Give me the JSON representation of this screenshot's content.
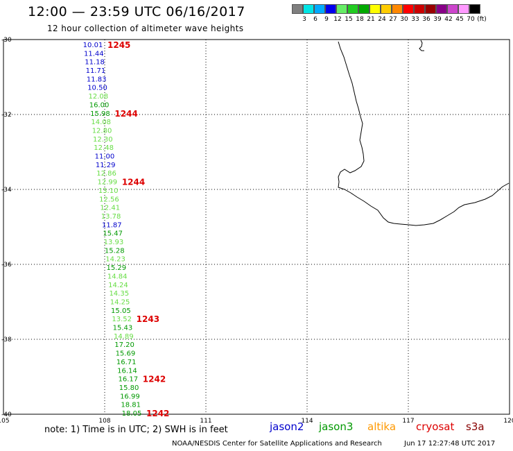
{
  "header": {
    "title": "12:00 — 23:59 UTC 06/16/2017",
    "subtitle": "12 hour collection of altimeter wave heights"
  },
  "colorbar": {
    "colors": [
      "#7f7f7f",
      "#00e5e5",
      "#00aaff",
      "#0000ee",
      "#66ee66",
      "#22cc22",
      "#00aa00",
      "#ffff00",
      "#ffcc00",
      "#ff8800",
      "#ff0000",
      "#cc0000",
      "#990000",
      "#880088",
      "#cc44cc",
      "#ff99ff",
      "#000000"
    ],
    "labels": [
      "3",
      "6",
      "9",
      "12",
      "15",
      "18",
      "21",
      "24",
      "27",
      "30",
      "33",
      "36",
      "39",
      "42",
      "45",
      "70",
      "(ft)"
    ]
  },
  "axes": {
    "lat_ticks": [
      "-30",
      "-32",
      "-34",
      "-36",
      "-38",
      "-40"
    ],
    "lon_ticks": [
      "105",
      "108",
      "111",
      "114",
      "117",
      "120"
    ],
    "lon_range": [
      105,
      120
    ],
    "lat_range": [
      -30,
      -40
    ]
  },
  "observations": [
    {
      "value": "10.01",
      "color": "#0000cc"
    },
    {
      "value": "11.44",
      "color": "#0000cc"
    },
    {
      "value": "11.18",
      "color": "#0000cc"
    },
    {
      "value": "11.71",
      "color": "#0000cc"
    },
    {
      "value": "11.83",
      "color": "#0000cc"
    },
    {
      "value": "10.50",
      "color": "#0000cc"
    },
    {
      "value": "12.08",
      "color": "#66dd44"
    },
    {
      "value": "16.00",
      "color": "#009900"
    },
    {
      "value": "15.98",
      "color": "#009900"
    },
    {
      "value": "14.08",
      "color": "#66dd44"
    },
    {
      "value": "12.80",
      "color": "#66dd44"
    },
    {
      "value": "12.30",
      "color": "#66dd44"
    },
    {
      "value": "12.48",
      "color": "#66dd44"
    },
    {
      "value": "11.00",
      "color": "#0000cc"
    },
    {
      "value": "11.29",
      "color": "#0000cc"
    },
    {
      "value": "12.86",
      "color": "#66dd44"
    },
    {
      "value": "12.99",
      "color": "#66dd44"
    },
    {
      "value": "13.10",
      "color": "#66dd44"
    },
    {
      "value": "12.56",
      "color": "#66dd44"
    },
    {
      "value": "12.41",
      "color": "#66dd44"
    },
    {
      "value": "13.78",
      "color": "#66dd44"
    },
    {
      "value": "11.87",
      "color": "#0000cc"
    },
    {
      "value": "15.47",
      "color": "#009900"
    },
    {
      "value": "13.93",
      "color": "#66dd44"
    },
    {
      "value": "15.28",
      "color": "#009900"
    },
    {
      "value": "14.23",
      "color": "#66dd44"
    },
    {
      "value": "15.29",
      "color": "#009900"
    },
    {
      "value": "14.84",
      "color": "#66dd44"
    },
    {
      "value": "14.24",
      "color": "#66dd44"
    },
    {
      "value": "14.35",
      "color": "#66dd44"
    },
    {
      "value": "14.25",
      "color": "#66dd44"
    },
    {
      "value": "15.05",
      "color": "#009900"
    },
    {
      "value": "13.52",
      "color": "#66dd44"
    },
    {
      "value": "15.43",
      "color": "#009900"
    },
    {
      "value": "14.89",
      "color": "#66dd44"
    },
    {
      "value": "17.20",
      "color": "#009900"
    },
    {
      "value": "15.69",
      "color": "#009900"
    },
    {
      "value": "16.71",
      "color": "#009900"
    },
    {
      "value": "16.14",
      "color": "#009900"
    },
    {
      "value": "16.17",
      "color": "#009900"
    },
    {
      "value": "15.80",
      "color": "#009900"
    },
    {
      "value": "16.99",
      "color": "#009900"
    },
    {
      "value": "18.81",
      "color": "#009900"
    },
    {
      "value": "18.05",
      "color": "#009900"
    }
  ],
  "time_labels": [
    {
      "text": "1245",
      "obs_index": 0
    },
    {
      "text": "1244",
      "obs_index": 8
    },
    {
      "text": "1244",
      "obs_index": 16
    },
    {
      "text": "1243",
      "obs_index": 32
    },
    {
      "text": "1242",
      "obs_index": 39
    },
    {
      "text": "1242",
      "obs_index": 43
    }
  ],
  "time_label_color": "#dd0000",
  "note": "note: 1) Time is in UTC; 2) SWH is in feet",
  "legend": [
    {
      "name": "jason2",
      "color": "#0000cc"
    },
    {
      "name": "jason3",
      "color": "#009900"
    },
    {
      "name": "altika",
      "color": "#ff9900"
    },
    {
      "name": "cryosat",
      "color": "#dd0000"
    },
    {
      "name": "s3a",
      "color": "#880000"
    }
  ],
  "footer": {
    "left": "NOAA/NESDIS Center for Satellite Applications and Research",
    "right": "Jun 17 12:27:48 UTC 2017"
  }
}
